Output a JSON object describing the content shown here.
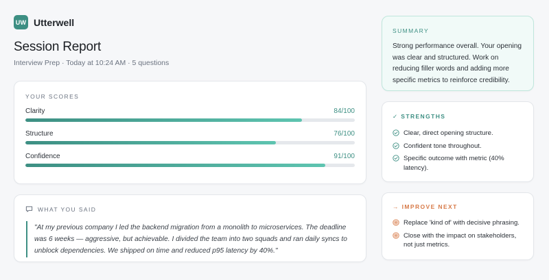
{
  "brand": {
    "logo_text": "UW",
    "name": "Utterwell"
  },
  "page": {
    "title": "Session Report",
    "subtitle": "Interview Prep · Today at 10:24 AM · 5 questions"
  },
  "scores": {
    "label": "YOUR SCORES",
    "items": [
      {
        "name": "Clarity",
        "display": "84/100",
        "value": 84,
        "max": 100
      },
      {
        "name": "Structure",
        "display": "76/100",
        "value": 76,
        "max": 100
      },
      {
        "name": "Confidence",
        "display": "91/100",
        "value": 91,
        "max": 100
      }
    ]
  },
  "said": {
    "label": "WHAT YOU SAID",
    "icon": "chat-bubble-icon",
    "quote": "\"At my previous company I led the backend migration from a monolith to microservices. The deadline was 6 weeks — aggressive, but achievable. I divided the team into two squads and ran daily syncs to unblock dependencies. We shipped on time and reduced p95 latency by 40%.\""
  },
  "summary": {
    "label": "SUMMARY",
    "text": "Strong performance overall. Your opening was clear and structured. Work on reducing filler words and adding more specific metrics to reinforce credibility."
  },
  "strengths": {
    "label": "✓ STRENGTHS",
    "icon": "check-circle-icon",
    "items": [
      "Clear, direct opening structure.",
      "Confident tone throughout.",
      "Specific outcome with metric (40% latency)."
    ]
  },
  "improve": {
    "label": "→ IMPROVE NEXT",
    "icon": "target-icon",
    "items": [
      "Replace 'kind of' with decisive phrasing.",
      "Close with the impact on stakeholders, not just metrics."
    ]
  },
  "colors": {
    "accent": "#3d8f83",
    "accent_light": "#5ec4b0",
    "warning": "#d77a48",
    "summary_bg": "#f1faf8"
  }
}
